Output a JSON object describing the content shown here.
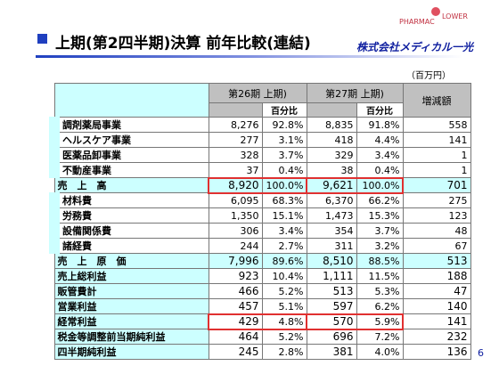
{
  "header": {
    "title": "上期(第2四半期)決算 前年比較(連結)",
    "logo": [
      "PHARMAC",
      "LOWER"
    ],
    "company": "株式会社メディカル一光"
  },
  "unit": "（百万円）",
  "table": {
    "columns": [
      "第26期 上期)",
      "第27期 上期)",
      "増減額"
    ],
    "subheader": [
      "百分比",
      "百分比"
    ],
    "rows": [
      [
        "調剤薬局事業",
        "8,276",
        "92.8%",
        "8,835",
        "91.8%",
        "558"
      ],
      [
        "ヘルスケア事業",
        "277",
        "3.1%",
        "418",
        "4.4%",
        "141"
      ],
      [
        "医薬品卸事業",
        "328",
        "3.7%",
        "329",
        "3.4%",
        "1"
      ],
      [
        "不動産事業",
        "37",
        "0.4%",
        "38",
        "0.4%",
        "1"
      ],
      [
        "売　上　高",
        "8,920",
        "100.0%",
        "9,621",
        "100.0%",
        "701"
      ],
      [
        "材料費",
        "6,095",
        "68.3%",
        "6,370",
        "66.2%",
        "275"
      ],
      [
        "労務費",
        "1,350",
        "15.1%",
        "1,473",
        "15.3%",
        "123"
      ],
      [
        "設備関係費",
        "306",
        "3.4%",
        "354",
        "3.7%",
        "48"
      ],
      [
        "諸経費",
        "244",
        "2.7%",
        "311",
        "3.2%",
        "67"
      ],
      [
        "売　上　原　価",
        "7,996",
        "89.6%",
        "8,510",
        "88.5%",
        "513"
      ],
      [
        "売上総利益",
        "923",
        "10.4%",
        "1,111",
        "11.5%",
        "188"
      ],
      [
        "販管費計",
        "466",
        "5.2%",
        "513",
        "5.3%",
        "47"
      ],
      [
        "営業利益",
        "457",
        "5.1%",
        "597",
        "6.2%",
        "140"
      ],
      [
        "経常利益",
        "429",
        "4.8%",
        "570",
        "5.9%",
        "141"
      ],
      [
        "税金等調整前当期純利益",
        "464",
        "5.2%",
        "696",
        "7.2%",
        "232"
      ],
      [
        "四半期純利益",
        "245",
        "2.8%",
        "381",
        "4.0%",
        "136"
      ]
    ]
  },
  "page_number": "6"
}
